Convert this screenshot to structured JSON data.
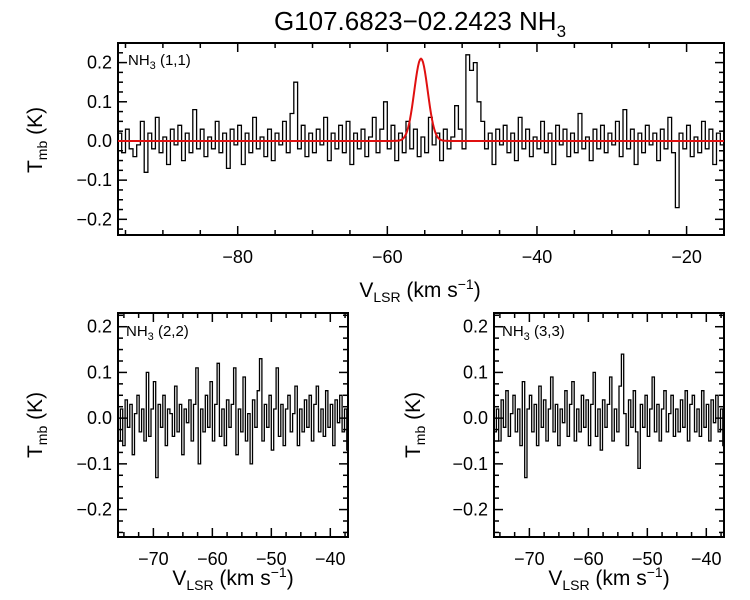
{
  "chart_data": [
    {
      "type": "line",
      "title_main": "G107.6823−02.2423 NH",
      "title_sub": "3",
      "panel_label": "NH(1,1)",
      "panel_label_main": "NH",
      "panel_label_sub": "3",
      "panel_label_suffix": " (1,1)",
      "xlabel": "V",
      "xlabel_sub": "LSR",
      "xlabel_unit": " (km s",
      "xlabel_exp": "−1",
      "xlabel_close": ")",
      "ylabel": "T",
      "ylabel_sub": "mb",
      "ylabel_unit": " (K)",
      "xlim": [
        -96,
        -15
      ],
      "ylim": [
        -0.24,
        0.25
      ],
      "xticks": [
        -80,
        -60,
        -40,
        -20
      ],
      "xtick_labels": [
        "−80",
        "−60",
        "−40",
        "−20"
      ],
      "yticks": [
        -0.2,
        -0.1,
        0.0,
        0.1,
        0.2
      ],
      "ytick_labels": [
        "−0.2",
        "−0.1",
        "0.0",
        "0.1",
        "0.2"
      ],
      "fit": {
        "amplitude": 0.21,
        "center": -55.5,
        "sigma": 0.9,
        "color": "#e01010"
      },
      "series": [
        {
          "name": "NH3 (1,1) spectrum",
          "x_start": -96,
          "x_step": 0.5,
          "values": [
            0.02,
            -0.03,
            0.03,
            -0.02,
            -0.04,
            -0.01,
            0.05,
            -0.08,
            0.02,
            -0.02,
            0.06,
            -0.03,
            0.01,
            -0.06,
            0.03,
            -0.01,
            0.04,
            -0.05,
            0.02,
            -0.03,
            0.08,
            -0.02,
            0.03,
            -0.04,
            0.01,
            -0.02,
            0.05,
            -0.03,
            0.02,
            -0.07,
            0.03,
            -0.01,
            0.04,
            -0.06,
            0.02,
            -0.03,
            0.06,
            -0.02,
            0.01,
            -0.04,
            0.03,
            -0.05,
            0.02,
            -0.01,
            0.05,
            -0.03,
            0.07,
            0.15,
            -0.02,
            0.04,
            -0.04,
            0.02,
            -0.03,
            0.03,
            -0.01,
            0.06,
            -0.05,
            0.02,
            -0.02,
            0.04,
            -0.03,
            0.05,
            -0.06,
            0.02,
            -0.02,
            0.03,
            -0.04,
            0.01,
            0.06,
            -0.03,
            0.03,
            0.1,
            -0.02,
            0.04,
            -0.05,
            0.02,
            -0.03,
            0.05,
            -0.02,
            0.03,
            -0.04,
            0.01,
            -0.03,
            0.06,
            -0.01,
            0.02,
            -0.05,
            0.03,
            -0.02,
            0.01,
            0.09,
            0.03,
            -0.02,
            0.22,
            0.18,
            0.2,
            0.1,
            0.05,
            -0.02,
            0.02,
            -0.06,
            0.03,
            -0.01,
            0.04,
            -0.03,
            0.02,
            -0.05,
            0.06,
            -0.02,
            0.03,
            -0.04,
            0.01,
            -0.02,
            0.05,
            -0.03,
            0.02,
            -0.06,
            0.04,
            -0.01,
            0.03,
            -0.04,
            0.02,
            -0.03,
            0.07,
            -0.02,
            0.01,
            -0.05,
            0.03,
            -0.02,
            0.04,
            -0.03,
            0.02,
            -0.01,
            0.05,
            -0.04,
            0.08,
            -0.02,
            0.03,
            -0.06,
            0.02,
            -0.03,
            0.04,
            -0.01,
            0.02,
            -0.05,
            0.03,
            -0.02,
            0.06,
            -0.03,
            -0.17,
            0.02,
            -0.02,
            0.04,
            -0.04,
            0.01,
            -0.03,
            0.05,
            -0.02,
            0.03,
            -0.06,
            0.02,
            -0.01
          ]
        }
      ]
    },
    {
      "type": "line",
      "panel_label_main": "NH",
      "panel_label_sub": "3",
      "panel_label_suffix": " (2,2)",
      "xlabel": "V",
      "xlabel_sub": "LSR",
      "xlabel_unit": " (km s",
      "xlabel_exp": "−1",
      "xlabel_close": ")",
      "ylabel": "T",
      "ylabel_sub": "mb",
      "ylabel_unit": " (K)",
      "xlim": [
        -76,
        -37
      ],
      "ylim": [
        -0.26,
        0.23
      ],
      "xticks": [
        -70,
        -60,
        -50,
        -40
      ],
      "xtick_labels": [
        "−70",
        "−60",
        "−50",
        "−40"
      ],
      "yticks": [
        -0.2,
        -0.1,
        0.0,
        0.1,
        0.2
      ],
      "ytick_labels": [
        "−0.2",
        "−0.1",
        "0.0",
        "0.1",
        "0.2"
      ],
      "series": [
        {
          "name": "NH3 (2,2) spectrum",
          "x_start": -76,
          "x_step": 0.4,
          "values": [
            -0.05,
            0.02,
            -0.06,
            0.04,
            -0.02,
            0.03,
            -0.08,
            0.01,
            0.05,
            -0.03,
            0.02,
            -0.05,
            0.1,
            -0.04,
            0.02,
            0.08,
            -0.13,
            0.03,
            -0.02,
            0.05,
            -0.06,
            0.02,
            0.01,
            -0.04,
            0.07,
            -0.03,
            0.03,
            -0.08,
            0.02,
            -0.01,
            0.04,
            -0.05,
            0.03,
            0.11,
            -0.1,
            0.02,
            -0.03,
            0.05,
            -0.02,
            0.08,
            -0.05,
            0.03,
            0.12,
            -0.04,
            0.02,
            -0.06,
            0.04,
            -0.02,
            0.03,
            0.11,
            -0.08,
            0.02,
            -0.03,
            0.09,
            -0.05,
            0.01,
            -0.1,
            0.04,
            -0.02,
            0.06,
            0.13,
            -0.05,
            0.03,
            -0.02,
            0.05,
            -0.07,
            0.02,
            0.11,
            -0.04,
            0.03,
            -0.06,
            0.02,
            0.05,
            -0.03,
            0.01,
            0.07,
            -0.06,
            0.02,
            -0.03,
            0.04,
            -0.02,
            0.05,
            -0.05,
            0.03,
            0.07,
            -0.03,
            0.02,
            -0.04,
            0.06,
            -0.02,
            0.03,
            -0.06,
            0.04,
            -0.01,
            0.05,
            -0.03,
            0.02,
            -0.07,
            0.01
          ]
        }
      ]
    },
    {
      "type": "line",
      "panel_label_main": "NH",
      "panel_label_sub": "3",
      "panel_label_suffix": " (3,3)",
      "xlabel": "V",
      "xlabel_sub": "LSR",
      "xlabel_unit": " (km s",
      "xlabel_exp": "−1",
      "xlabel_close": ")",
      "ylabel": "T",
      "ylabel_sub": "mb",
      "ylabel_unit": " (K)",
      "xlim": [
        -76,
        -37
      ],
      "ylim": [
        -0.26,
        0.23
      ],
      "xticks": [
        -70,
        -60,
        -50,
        -40
      ],
      "xtick_labels": [
        "−70",
        "−60",
        "−50",
        "−40"
      ],
      "yticks": [
        -0.2,
        -0.1,
        0.0,
        0.1,
        0.2
      ],
      "ytick_labels": [
        "−0.2",
        "−0.1",
        "0.0",
        "0.1",
        "0.2"
      ],
      "series": [
        {
          "name": "NH3 (3,3) spectrum",
          "x_start": -76,
          "x_step": 0.4,
          "values": [
            -0.03,
            0.02,
            -0.05,
            0.04,
            -0.02,
            0.06,
            -0.04,
            0.01,
            0.05,
            -0.03,
            0.02,
            -0.06,
            0.08,
            -0.13,
            0.02,
            0.05,
            -0.03,
            0.03,
            -0.06,
            0.07,
            -0.02,
            0.04,
            -0.05,
            0.02,
            0.09,
            -0.03,
            0.03,
            -0.06,
            0.02,
            -0.01,
            0.06,
            -0.04,
            0.03,
            0.08,
            -0.05,
            0.02,
            -0.03,
            0.05,
            -0.02,
            0.04,
            -0.06,
            0.03,
            0.1,
            -0.04,
            0.02,
            -0.07,
            0.04,
            -0.02,
            0.03,
            0.09,
            -0.05,
            0.02,
            -0.03,
            0.07,
            0.14,
            0.01,
            -0.06,
            0.04,
            -0.02,
            0.06,
            -0.03,
            -0.11,
            0.03,
            -0.02,
            0.05,
            -0.04,
            0.02,
            0.09,
            -0.03,
            0.03,
            -0.05,
            0.02,
            0.06,
            -0.03,
            0.01,
            0.05,
            -0.04,
            0.02,
            -0.03,
            0.04,
            -0.02,
            0.06,
            -0.05,
            0.03,
            0.05,
            -0.03,
            0.02,
            -0.04,
            0.06,
            -0.02,
            0.03,
            -0.05,
            0.04,
            -0.01,
            0.05,
            -0.03,
            0.02,
            -0.06,
            0.01
          ]
        }
      ]
    }
  ]
}
